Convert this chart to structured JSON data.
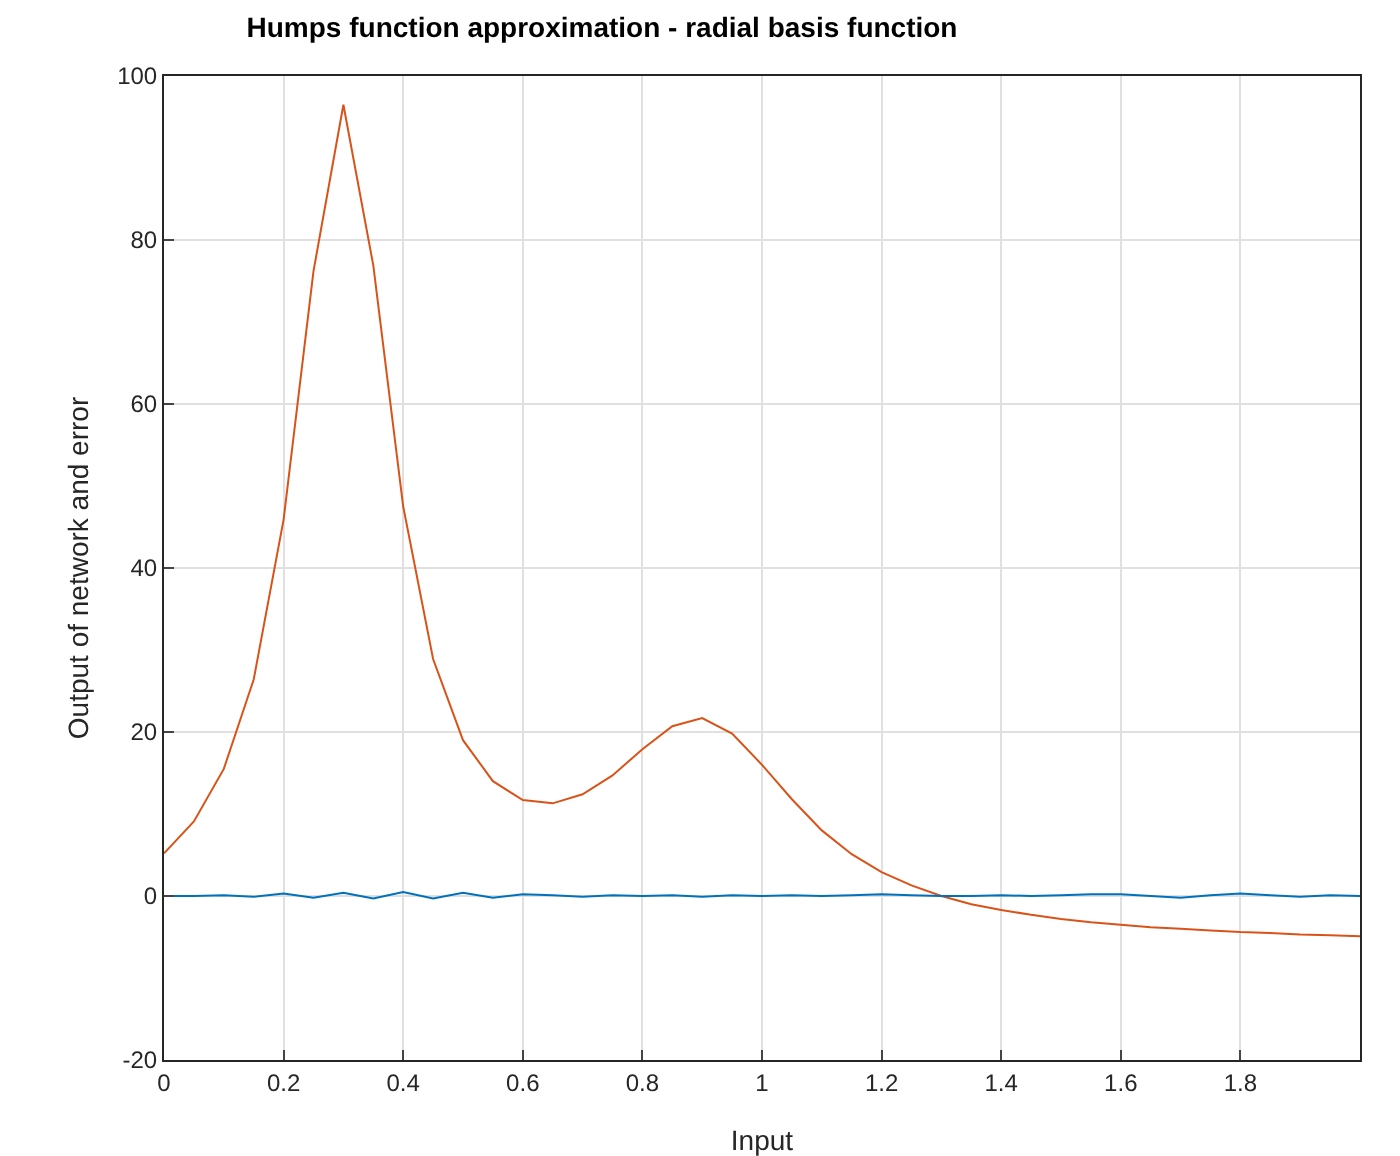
{
  "chart_data": {
    "type": "line",
    "title": "Humps function approximation - radial basis function",
    "xlabel": "Input",
    "ylabel": "Output of network and error",
    "x": [
      0,
      0.05,
      0.1,
      0.15,
      0.2,
      0.25,
      0.3,
      0.35,
      0.4,
      0.45,
      0.5,
      0.55,
      0.6,
      0.65,
      0.7,
      0.75,
      0.8,
      0.85,
      0.9,
      0.95,
      1,
      1.05,
      1.1,
      1.15,
      1.2,
      1.25,
      1.3,
      1.35,
      1.4,
      1.45,
      1.5,
      1.55,
      1.6,
      1.65,
      1.7,
      1.75,
      1.8,
      1.85,
      1.9,
      1.95,
      2
    ],
    "series": [
      {
        "color": "#d95319",
        "values": [
          5.2,
          9.1,
          15.5,
          26.4,
          45.9,
          76.2,
          96.5,
          76.9,
          47.5,
          28.9,
          19.0,
          14.0,
          11.7,
          11.3,
          12.4,
          14.7,
          17.9,
          20.7,
          21.7,
          19.8,
          16.0,
          11.8,
          8.0,
          5.1,
          2.9,
          1.3,
          0,
          -1.0,
          -1.7,
          -2.3,
          -2.8,
          -3.2,
          -3.5,
          -3.8,
          -4.0,
          -4.2,
          -4.4,
          -4.5,
          -4.7,
          -4.8,
          -4.9
        ]
      },
      {
        "color": "#0072bd",
        "values": [
          0,
          0,
          0.1,
          -0.1,
          0.3,
          -0.2,
          0.4,
          -0.3,
          0.5,
          -0.3,
          0.4,
          -0.2,
          0.2,
          0.1,
          -0.1,
          0.1,
          0,
          0.1,
          -0.1,
          0.1,
          0,
          0.1,
          0,
          0.1,
          0.2,
          0.1,
          0,
          0,
          0.1,
          0,
          0.1,
          0.2,
          0.2,
          0,
          -0.2,
          0.1,
          0.3,
          0.1,
          -0.1,
          0.1,
          0
        ]
      }
    ],
    "xlim": [
      0,
      2
    ],
    "xticks": [
      0,
      0.2,
      0.4,
      0.6,
      0.8,
      1,
      1.2,
      1.4,
      1.6,
      1.8
    ],
    "ylim": [
      -20,
      100
    ],
    "yticks": [
      -20,
      0,
      20,
      40,
      60,
      80,
      100
    ],
    "grid": true,
    "marker": "none",
    "line_style": "solid"
  }
}
